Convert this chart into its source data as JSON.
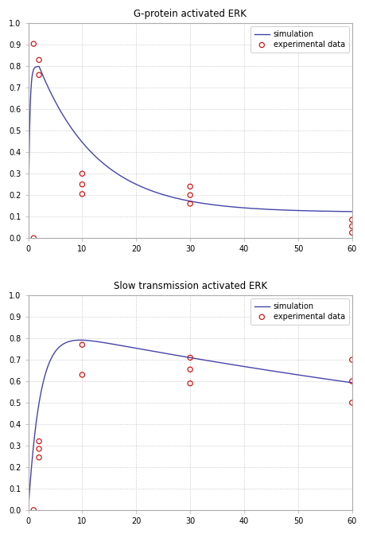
{
  "top_title": "G-protein activated ERK",
  "bottom_title": "Slow transmission activated ERK",
  "legend_sim": "simulation",
  "legend_exp": "experimental data",
  "xlim": [
    0,
    60
  ],
  "xticks": [
    0,
    10,
    20,
    30,
    40,
    50,
    60
  ],
  "yticks": [
    0.0,
    0.1,
    0.2,
    0.3,
    0.4,
    0.5,
    0.6,
    0.7,
    0.8,
    0.9,
    1.0
  ],
  "top_exp_x": [
    1,
    1,
    2,
    2,
    10,
    10,
    10,
    30,
    30,
    30,
    60,
    60,
    60
  ],
  "top_exp_y": [
    0.0,
    0.905,
    0.83,
    0.76,
    0.3,
    0.25,
    0.205,
    0.24,
    0.2,
    0.16,
    0.085,
    0.055,
    0.025
  ],
  "bottom_exp_x": [
    1,
    2,
    2,
    2,
    10,
    10,
    30,
    30,
    30,
    60,
    60,
    60
  ],
  "bottom_exp_y": [
    0.0,
    0.32,
    0.285,
    0.245,
    0.77,
    0.63,
    0.71,
    0.655,
    0.59,
    0.7,
    0.6,
    0.5
  ],
  "line_color": "#4444aa",
  "marker_color": "#cc0000",
  "background_color": "#ffffff",
  "grid_color": "#bbbbbb",
  "spine_color": "#aaaaaa",
  "title_fontsize": 8.5,
  "tick_fontsize": 7,
  "legend_fontsize": 7
}
